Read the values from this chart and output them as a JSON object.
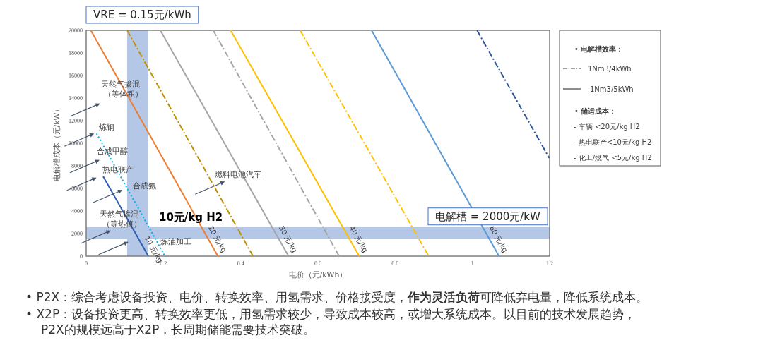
{
  "chart_data": {
    "type": "line",
    "xlabel": "电价（元/kWh）",
    "ylabel": "电解槽成本（元/kW）",
    "xlim": [
      0,
      1.2
    ],
    "xticks": [
      0,
      0.2,
      0.4,
      0.6,
      0.8,
      1,
      1.2
    ],
    "ylim": [
      0,
      20000
    ],
    "yticks": [
      0,
      2000,
      4000,
      6000,
      8000,
      10000,
      12000,
      14000,
      16000,
      18000,
      20000
    ],
    "series": [
      {
        "name": "10 元/kg",
        "color": "#2f5fb3",
        "line_style": "solid",
        "x": [
          0.044,
          0.161
        ],
        "values": [
          7060,
          0
        ]
      },
      {
        "color": "#00b0f0",
        "line_style": "dotted",
        "x": [
          0.027,
          0.204
        ],
        "values": [
          10860,
          0
        ]
      },
      {
        "name": "20 元/kg",
        "color": "#ed7d31",
        "line_style": "solid",
        "x": [
          0.012,
          0.341
        ],
        "values": [
          20000,
          0
        ]
      },
      {
        "color": "#bf9000",
        "line_style": "dashed",
        "x": [
          0.106,
          0.432
        ],
        "values": [
          20000,
          0
        ]
      },
      {
        "name": "30 元/kg",
        "color": "#a5a5a5",
        "line_style": "solid",
        "x": [
          0.192,
          0.524
        ],
        "values": [
          20000,
          0
        ]
      },
      {
        "color": "#a5a5a5",
        "line_style": "dashed",
        "x": [
          0.329,
          0.655
        ],
        "values": [
          20000,
          0
        ]
      },
      {
        "name": "40 元/kg",
        "color": "#ffc000",
        "line_style": "solid",
        "x": [
          0.374,
          0.707
        ],
        "values": [
          20000,
          0
        ]
      },
      {
        "color": "#ffc000",
        "line_style": "dashed",
        "x": [
          0.554,
          0.887
        ],
        "values": [
          20000,
          0
        ]
      },
      {
        "name": "60 元/kg",
        "color": "#5b9bd5",
        "line_style": "solid",
        "x": [
          0.739,
          1.069
        ],
        "values": [
          20000,
          0
        ]
      },
      {
        "color": "#2f5597",
        "line_style": "dashed",
        "x": [
          1.012,
          1.199
        ],
        "values": [
          20000,
          8690
        ]
      }
    ],
    "bands": [
      {
        "axis": "x",
        "from": 0.106,
        "to": 0.16,
        "label": "VRE = 0.15元/kWh",
        "color": "#b4c7e7"
      },
      {
        "axis": "y",
        "from": 1540,
        "to": 2580,
        "label": "电解槽 = 2000元/kW",
        "color": "#b4c7e7"
      }
    ],
    "annotations": [
      "天然气掺混（等体积）",
      "炼钢",
      "合成甲醇",
      "热电联产",
      "合成氨",
      "燃料电池汽车",
      "天然气掺混（等热值）",
      "炼油加工",
      "10元/kg H2",
      "• **电解槽效率：**",
      "1Nm3/4kWh",
      "1Nm3/5kWh",
      "• **储运成本：**",
      "-  车辆 <20元/kg H2",
      "-  热电联产<10元/kg H2",
      "-  化工/燃气 <5元/kg H2",
      "•  P2X：综合考虑设备投资、电价、转换效率、用氢需求、价格接受度，**作为灵活负荷**可降低弃电量，降低系统成本。",
      "•  X2P：设备投资更高、转换效率更低，用氢需求较少，导致成本较高，或增大系统成本。以目前的技术发展趋势，P2X的规模远高于X2P，长周期储能需要技术突破。"
    ]
  }
}
